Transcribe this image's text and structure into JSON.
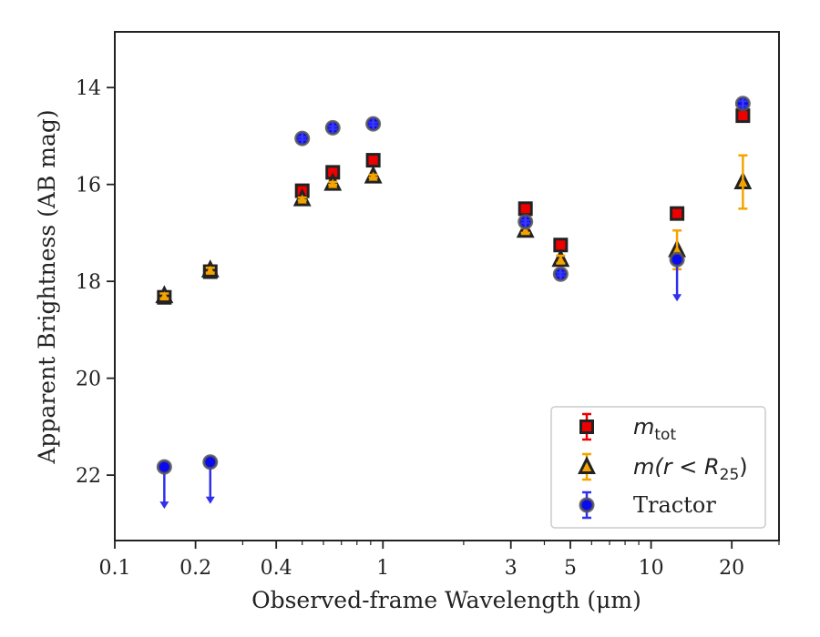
{
  "chart_data": {
    "type": "scatter",
    "xscale": "log",
    "xlim": [
      0.1,
      30
    ],
    "ylim": [
      23.35,
      12.85
    ],
    "y_inverted": true,
    "grid": false,
    "xlabel": "Observed-frame Wavelength (μm)",
    "ylabel": "Apparent Brightness (AB mag)",
    "xticks": [
      {
        "value": 0.1,
        "label": "0.1"
      },
      {
        "value": 0.2,
        "label": "0.2"
      },
      {
        "value": 0.4,
        "label": "0.4"
      },
      {
        "value": 1,
        "label": "1"
      },
      {
        "value": 3,
        "label": "3"
      },
      {
        "value": 5,
        "label": "5"
      },
      {
        "value": 10,
        "label": "10"
      },
      {
        "value": 20,
        "label": "20"
      }
    ],
    "yticks": [
      {
        "value": 14,
        "label": "14"
      },
      {
        "value": 16,
        "label": "16"
      },
      {
        "value": 18,
        "label": "18"
      },
      {
        "value": 20,
        "label": "20"
      },
      {
        "value": 22,
        "label": "22"
      }
    ],
    "legend_position": "bottom-right",
    "series": [
      {
        "name": "m_tot",
        "marker": "square",
        "fill": "#ee0000",
        "edge": "#222222",
        "errcolor": "#ee0000",
        "points": [
          {
            "x": 0.153,
            "y": 18.33,
            "err": 0.05
          },
          {
            "x": 0.227,
            "y": 17.8,
            "err": 0.05
          },
          {
            "x": 0.5,
            "y": 16.13,
            "err": 0.03
          },
          {
            "x": 0.65,
            "y": 15.75,
            "err": 0.03
          },
          {
            "x": 0.92,
            "y": 15.5,
            "err": 0.03
          },
          {
            "x": 3.4,
            "y": 16.5,
            "err": 0.03
          },
          {
            "x": 4.6,
            "y": 17.25,
            "err": 0.03
          },
          {
            "x": 12.5,
            "y": 16.6,
            "err": 0.05
          },
          {
            "x": 22.0,
            "y": 14.58,
            "err": 0.05
          }
        ]
      },
      {
        "name": "m(r < R25)",
        "marker": "triangle",
        "fill": "#f5a300",
        "edge": "#222222",
        "errcolor": "#f5a300",
        "points": [
          {
            "x": 0.153,
            "y": 18.3,
            "err": 0.05
          },
          {
            "x": 0.227,
            "y": 17.77,
            "err": 0.05
          },
          {
            "x": 0.5,
            "y": 16.3,
            "err": 0.03
          },
          {
            "x": 0.65,
            "y": 15.98,
            "err": 0.03
          },
          {
            "x": 0.92,
            "y": 15.83,
            "err": 0.03
          },
          {
            "x": 3.4,
            "y": 16.95,
            "err": 0.05
          },
          {
            "x": 4.6,
            "y": 17.55,
            "err": 0.08
          },
          {
            "x": 12.5,
            "y": 17.35,
            "err": 0.4
          },
          {
            "x": 22.0,
            "y": 15.95,
            "err": 0.55
          }
        ]
      },
      {
        "name": "Tractor",
        "marker": "circle",
        "fill": "#0a0aee",
        "edge": "#555555",
        "errcolor": "#3030ee",
        "points": [
          {
            "x": 0.153,
            "y": 21.83,
            "upper_limit": true
          },
          {
            "x": 0.227,
            "y": 21.73,
            "upper_limit": true
          },
          {
            "x": 0.5,
            "y": 15.05,
            "err": 0.03
          },
          {
            "x": 0.65,
            "y": 14.83,
            "err": 0.03
          },
          {
            "x": 0.92,
            "y": 14.75,
            "err": 0.03
          },
          {
            "x": 3.4,
            "y": 16.77,
            "err": 0.03
          },
          {
            "x": 4.6,
            "y": 17.85,
            "err": 0.03
          },
          {
            "x": 12.5,
            "y": 17.55,
            "upper_limit": true
          },
          {
            "x": 22.0,
            "y": 14.33,
            "err": 0.05
          }
        ]
      }
    ],
    "legend": {
      "entries": [
        {
          "marker": "square",
          "label_main": "m",
          "label_sub": "tot"
        },
        {
          "marker": "triangle",
          "label_main": "m(r < R",
          "label_sub": "25",
          "label_tail": ")"
        },
        {
          "marker": "circle",
          "label_main": "Tractor",
          "label_sub": ""
        }
      ]
    }
  }
}
